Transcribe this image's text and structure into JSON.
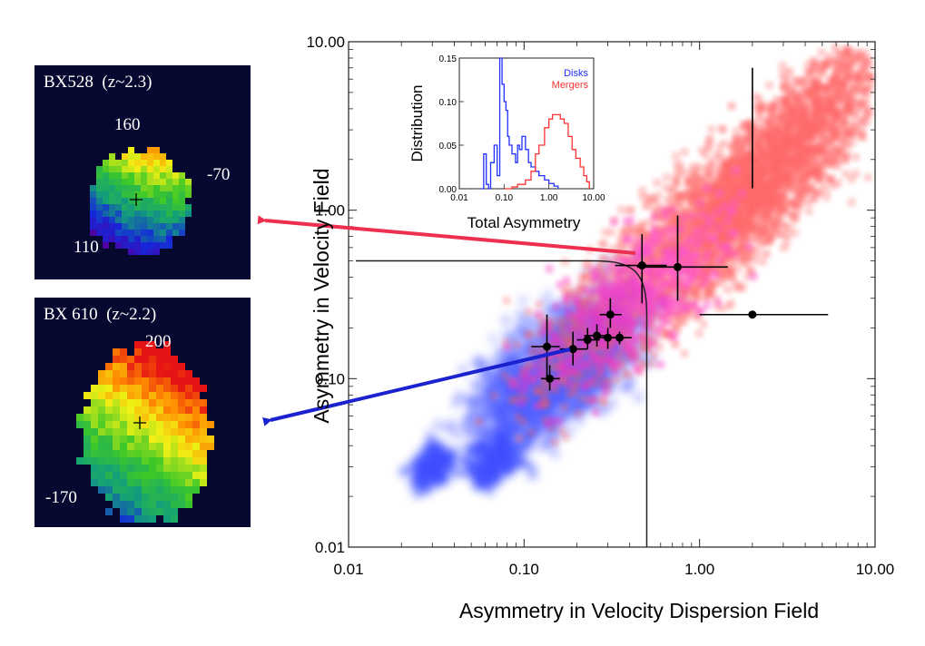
{
  "chart_data": [
    {
      "type": "scatter",
      "title": "",
      "xlabel": "Asymmetry in Velocity Dispersion Field",
      "ylabel": "Asymmetry in Velocity Field",
      "xscale": "log",
      "yscale": "log",
      "xlim": [
        0.01,
        10.0
      ],
      "ylim": [
        0.01,
        10.0
      ],
      "x_tick_labels": [
        "0.01",
        "0.10",
        "1.00",
        "10.00"
      ],
      "y_tick_labels": [
        "0.01",
        "0.10",
        "1.00",
        "10.00"
      ],
      "x_ticks": [
        0.01,
        0.1,
        1.0,
        10.0
      ],
      "y_ticks": [
        0.01,
        0.1,
        1.0,
        10.0
      ],
      "grid": false,
      "background": "2D density of simulated disks (blue) and mergers (red)",
      "colors": {
        "disks": "#2030ff",
        "mergers": "#ff3030",
        "points": "#000000"
      },
      "points": [
        {
          "x": 2.0,
          "y": 0.24,
          "xerr": [
            1.0,
            5.4
          ],
          "yerr": [
            1.35,
            7.0
          ]
        },
        {
          "x": 0.47,
          "y": 0.47,
          "xerr": [
            0.33,
            0.65
          ],
          "yerr": [
            0.28,
            0.72
          ]
        },
        {
          "x": 0.75,
          "y": 0.46,
          "xerr": [
            0.44,
            1.45
          ],
          "yerr": [
            0.29,
            0.93
          ]
        },
        {
          "x": 0.31,
          "y": 0.24,
          "xerr": [
            0.27,
            0.36
          ],
          "yerr": [
            0.2,
            0.3
          ]
        },
        {
          "x": 0.135,
          "y": 0.155,
          "xerr": [
            0.11,
            0.16
          ],
          "yerr": [
            0.1,
            0.24
          ]
        },
        {
          "x": 0.14,
          "y": 0.1,
          "xerr": [
            0.125,
            0.16
          ],
          "yerr": [
            0.085,
            0.12
          ]
        },
        {
          "x": 0.19,
          "y": 0.15,
          "xerr": [
            0.16,
            0.23
          ],
          "yerr": [
            0.12,
            0.19
          ]
        },
        {
          "x": 0.23,
          "y": 0.17,
          "xerr": [
            0.2,
            0.27
          ],
          "yerr": [
            0.15,
            0.2
          ]
        },
        {
          "x": 0.26,
          "y": 0.18,
          "xerr": [
            0.22,
            0.3
          ],
          "yerr": [
            0.155,
            0.21
          ]
        },
        {
          "x": 0.3,
          "y": 0.175,
          "xerr": [
            0.26,
            0.34
          ],
          "yerr": [
            0.15,
            0.2
          ]
        },
        {
          "x": 0.35,
          "y": 0.175,
          "xerr": [
            0.31,
            0.41
          ],
          "yerr": [
            0.16,
            0.19
          ]
        }
      ],
      "boundary": {
        "x_asymptote": 0.5,
        "y_asymptote": 0.5
      }
    },
    {
      "type": "line",
      "title": "",
      "xlabel": "Total Asymmetry",
      "ylabel": "Distribution",
      "xscale": "log",
      "xlim": [
        0.01,
        10.0
      ],
      "ylim": [
        0.0,
        0.15
      ],
      "x_tick_labels": [
        "0.01",
        "0.10",
        "1.00",
        "10.00"
      ],
      "y_tick_labels": [
        "0.00",
        "0.05",
        "0.10",
        "0.15"
      ],
      "legend_position": "top-right",
      "series": [
        {
          "name": "Disks",
          "color": "#2030ff",
          "x": [
            0.03,
            0.035,
            0.04,
            0.045,
            0.05,
            0.06,
            0.07,
            0.08,
            0.09,
            0.1,
            0.11,
            0.12,
            0.13,
            0.15,
            0.18,
            0.2,
            0.22,
            0.25,
            0.3,
            0.35,
            0.4,
            0.5,
            0.6,
            0.8,
            1.0,
            1.3,
            1.6
          ],
          "y": [
            0.0,
            0.04,
            0.005,
            0.0,
            0.03,
            0.05,
            0.015,
            0.15,
            0.12,
            0.1,
            0.09,
            0.06,
            0.05,
            0.04,
            0.03,
            0.05,
            0.045,
            0.06,
            0.045,
            0.03,
            0.025,
            0.02,
            0.015,
            0.01,
            0.006,
            0.003,
            0.0
          ]
        },
        {
          "name": "Mergers",
          "color": "#ff3030",
          "x": [
            0.1,
            0.15,
            0.2,
            0.3,
            0.4,
            0.5,
            0.6,
            0.8,
            1.0,
            1.2,
            1.5,
            1.8,
            2.2,
            2.7,
            3.3,
            4.0,
            5.0,
            6.0,
            7.0,
            8.0
          ],
          "y": [
            0.0,
            0.002,
            0.005,
            0.01,
            0.02,
            0.04,
            0.05,
            0.07,
            0.08,
            0.085,
            0.085,
            0.08,
            0.075,
            0.06,
            0.045,
            0.035,
            0.025,
            0.015,
            0.008,
            0.0
          ]
        }
      ]
    }
  ],
  "panels": [
    {
      "title": "BX528  (z~2.3)",
      "labels": [
        "160",
        "-70",
        "110"
      ]
    },
    {
      "title": "BX 610  (z~2.2)",
      "labels": [
        "200",
        "-170"
      ]
    }
  ],
  "arrows": {
    "upper_color": "#ee3050",
    "lower_color": "#1a22d0"
  }
}
